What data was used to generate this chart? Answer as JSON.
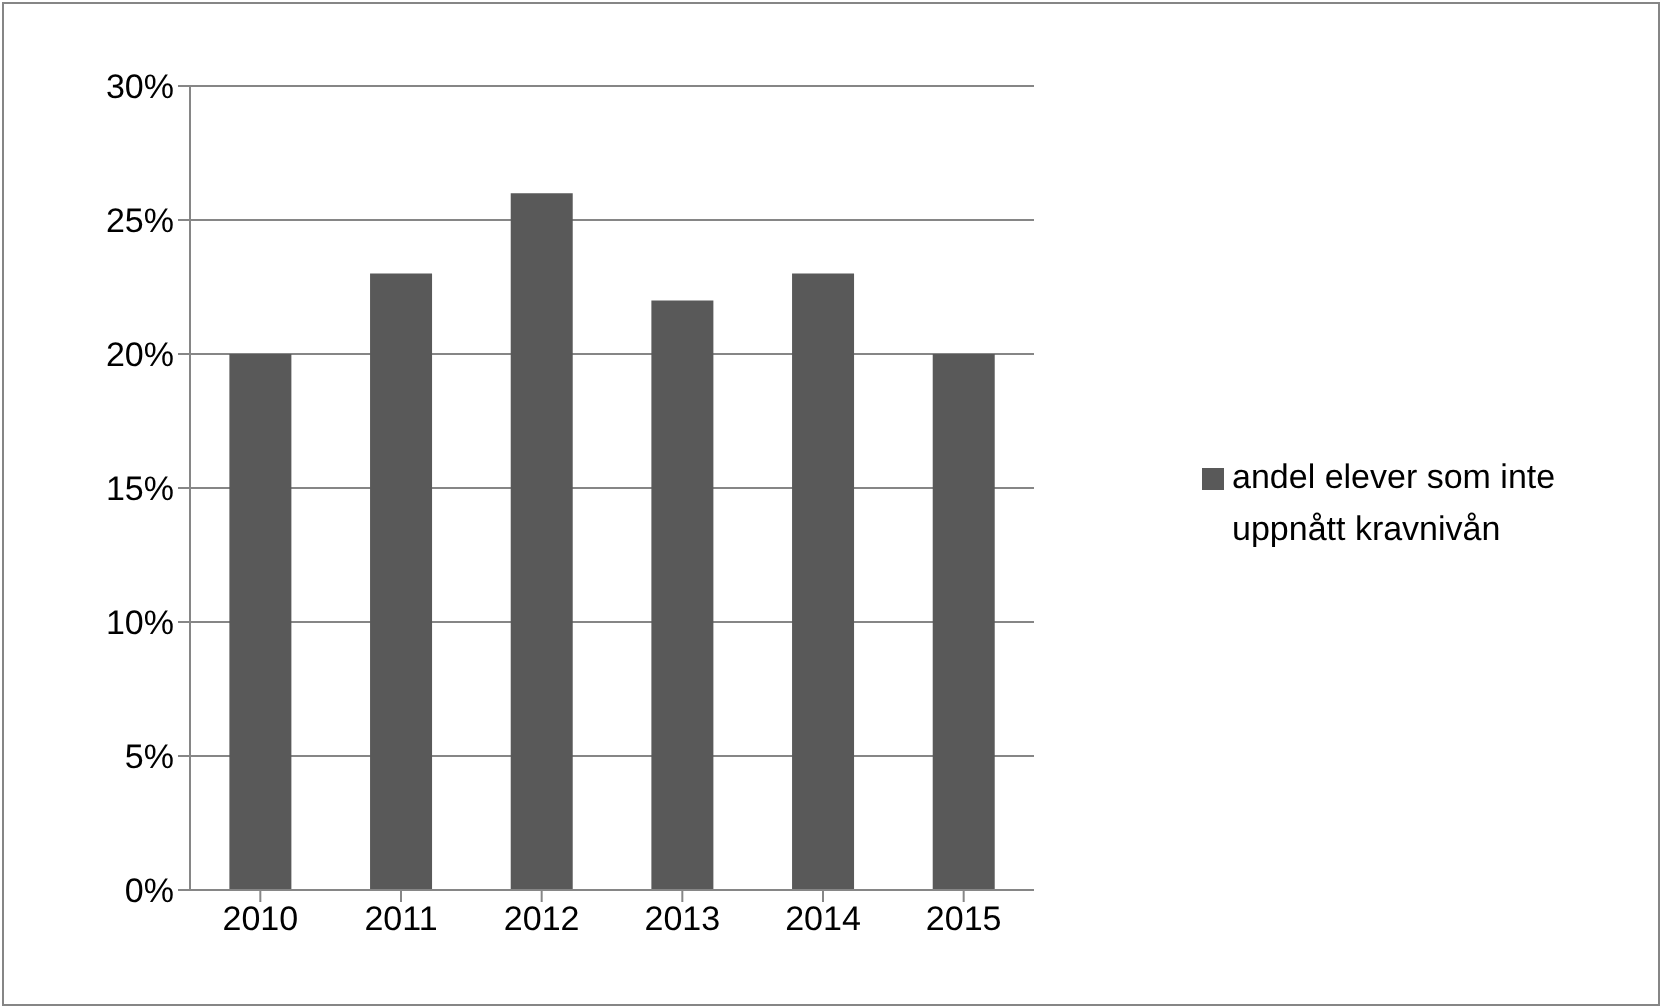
{
  "chart_data": {
    "type": "bar",
    "categories": [
      "2010",
      "2011",
      "2012",
      "2013",
      "2014",
      "2015"
    ],
    "series": [
      {
        "name": "andel elever som inte uppnått kravnivån",
        "color": "#595959",
        "values": [
          20,
          23,
          26,
          22,
          23,
          20
        ]
      }
    ],
    "ylim": [
      0,
      30
    ],
    "yticks": [
      {
        "value": 0,
        "label": "0%"
      },
      {
        "value": 5,
        "label": "5%"
      },
      {
        "value": 10,
        "label": "10%"
      },
      {
        "value": 15,
        "label": "15%"
      },
      {
        "value": 20,
        "label": "20%"
      },
      {
        "value": 25,
        "label": "25%"
      },
      {
        "value": 30,
        "label": "30%"
      }
    ],
    "grid": "y",
    "legend": "right"
  }
}
